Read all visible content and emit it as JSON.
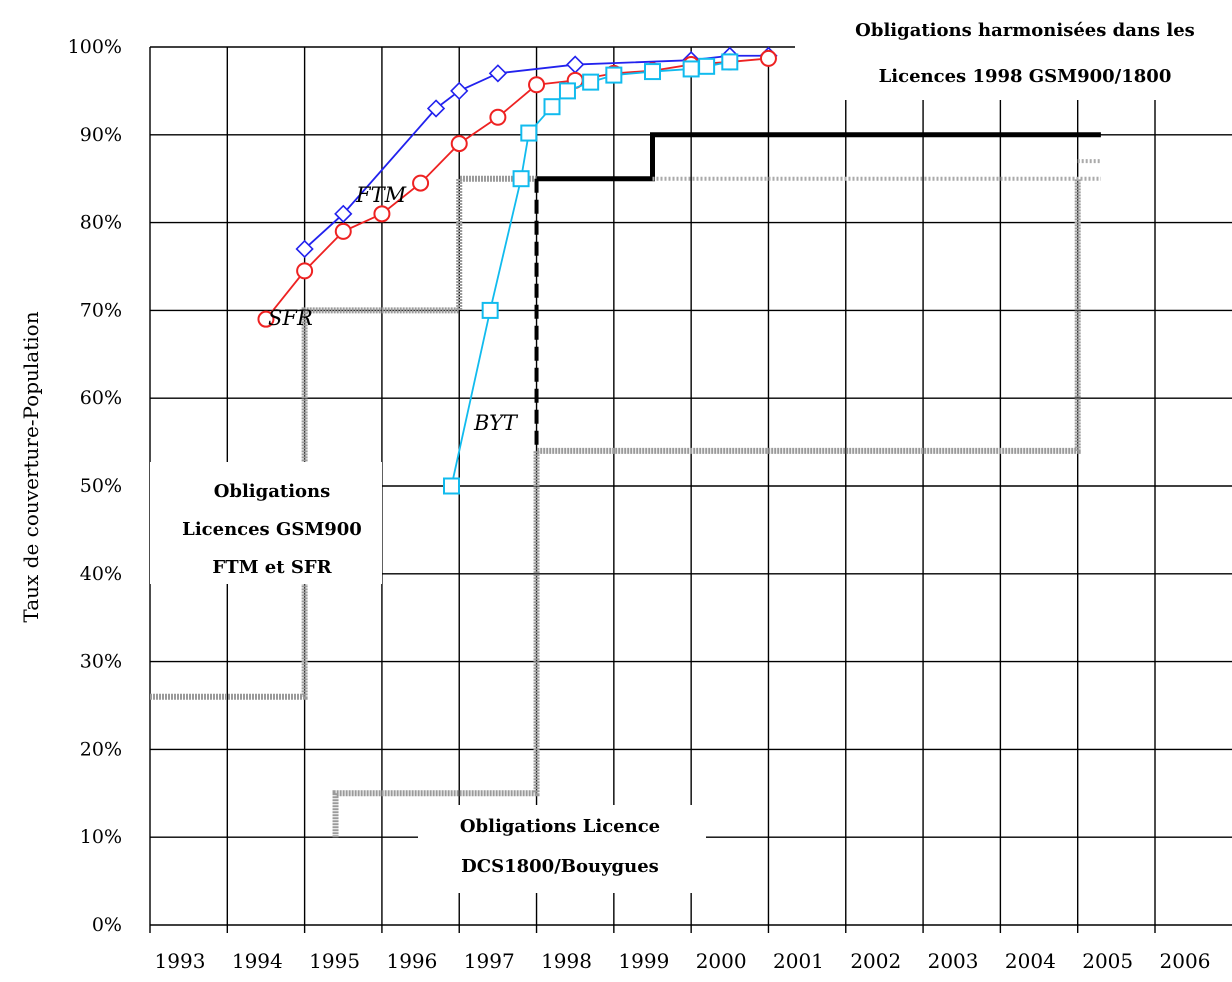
{
  "chart_data": {
    "type": "line",
    "ylabel": "Taux de couverture-Population",
    "xlabel": "",
    "title": "",
    "x_ticks": [
      "1993",
      "1994",
      "1995",
      "1996",
      "1997",
      "1998",
      "1999",
      "2000",
      "2001",
      "2002",
      "2003",
      "2004",
      "2005",
      "2006"
    ],
    "xlim": [
      1993,
      2006
    ],
    "ylim": [
      0,
      100
    ],
    "y_ticks": [
      "0%",
      "10%",
      "20%",
      "30%",
      "40%",
      "50%",
      "60%",
      "70%",
      "80%",
      "90%",
      "100%"
    ],
    "grid": true,
    "series": [
      {
        "name": "FTM",
        "color": "#2222ee",
        "marker": "diamond",
        "x": [
          1995.0,
          1995.5,
          1996.7,
          1997.0,
          1997.5,
          1998.5,
          2000.0,
          2000.5,
          2001.0
        ],
        "y": [
          77,
          81,
          93,
          95,
          97,
          98,
          98.5,
          99,
          99
        ]
      },
      {
        "name": "SFR",
        "color": "#ee2222",
        "marker": "circle",
        "x": [
          1994.5,
          1995.0,
          1995.5,
          1996.0,
          1996.5,
          1997.0,
          1997.5,
          1998.0,
          1998.5,
          1999.0,
          1999.5,
          2000.0,
          2000.5,
          2001.0
        ],
        "y": [
          69,
          74.5,
          79,
          81,
          84.5,
          89,
          92,
          95.7,
          96.2,
          97,
          97.3,
          98,
          98.3,
          98.7
        ]
      },
      {
        "name": "BYT",
        "color": "#11bbee",
        "marker": "square",
        "x": [
          1996.9,
          1997.4,
          1997.8,
          1997.9,
          1998.2,
          1998.4,
          1998.7,
          1999.0,
          1999.5,
          2000.0,
          2000.2,
          2000.5
        ],
        "y": [
          50,
          70,
          85,
          90.2,
          93.2,
          95,
          96,
          96.8,
          97.2,
          97.5,
          97.8,
          98.3
        ]
      }
    ],
    "series_labels": [
      "FTM",
      "SFR",
      "BYT"
    ],
    "obligation_lines": [
      {
        "style": "gray-hatched",
        "points": [
          [
            1993.0,
            26
          ],
          [
            1995.0,
            26
          ],
          [
            1995.0,
            70
          ],
          [
            1997.0,
            70
          ],
          [
            1997.0,
            85
          ],
          [
            1998.0,
            85
          ]
        ]
      },
      {
        "style": "gray-hatched",
        "points": [
          [
            1995.4,
            10
          ],
          [
            1995.4,
            15
          ],
          [
            1998.0,
            15
          ],
          [
            1998.0,
            54
          ],
          [
            2005.0,
            54
          ],
          [
            2005.0,
            85
          ]
        ]
      },
      {
        "style": "black-solid",
        "points": [
          [
            1998.0,
            85
          ],
          [
            1999.5,
            85
          ],
          [
            1999.5,
            90
          ],
          [
            2005.3,
            90
          ]
        ]
      },
      {
        "style": "black-dashed",
        "points": [
          [
            1998.0,
            85
          ],
          [
            1998.0,
            54
          ]
        ]
      },
      {
        "style": "gray-dotted",
        "points": [
          [
            1999.5,
            85
          ],
          [
            2005.3,
            85
          ]
        ]
      },
      {
        "style": "gray-dotted",
        "points": [
          [
            2005.0,
            87
          ],
          [
            2005.3,
            87
          ]
        ]
      }
    ],
    "annotations": [
      {
        "lines": [
          "Obligations harmonisées dans les",
          "Licences 1998 GSM900/1800"
        ]
      },
      {
        "lines": [
          "Obligations",
          "Licences GSM900",
          "FTM et SFR"
        ]
      },
      {
        "lines": [
          "Obligations Licence",
          "DCS1800/Bouygues"
        ]
      }
    ]
  }
}
